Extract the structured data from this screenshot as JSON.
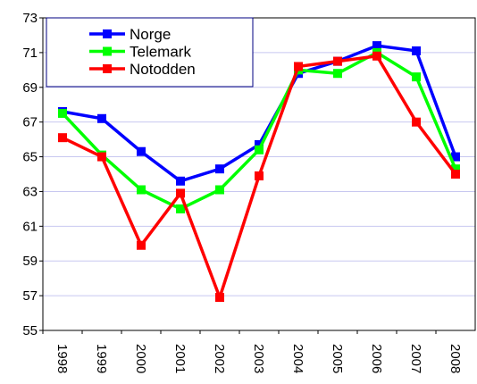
{
  "chart_data": {
    "type": "line",
    "categories": [
      "1998",
      "1999",
      "2000",
      "2001",
      "2002",
      "2003",
      "2004",
      "2005",
      "2006",
      "2007",
      "2008"
    ],
    "series": [
      {
        "name": "Norge",
        "color": "#0000ff",
        "values": [
          67.6,
          67.2,
          65.3,
          63.6,
          64.3,
          65.7,
          69.8,
          70.5,
          71.4,
          71.1,
          65.0
        ]
      },
      {
        "name": "Telemark",
        "color": "#00ff00",
        "values": [
          67.5,
          65.1,
          63.1,
          62.0,
          63.1,
          65.4,
          70.0,
          69.8,
          71.0,
          69.6,
          64.3
        ]
      },
      {
        "name": "Notodden",
        "color": "#ff0000",
        "values": [
          66.1,
          65.0,
          59.9,
          62.9,
          56.9,
          63.9,
          70.2,
          70.5,
          70.8,
          67.0,
          64.0
        ]
      }
    ],
    "ylim": [
      55,
      73
    ],
    "yticks": [
      55,
      57,
      59,
      61,
      63,
      65,
      67,
      69,
      71,
      73
    ],
    "grid": true,
    "legend": "top-left"
  }
}
